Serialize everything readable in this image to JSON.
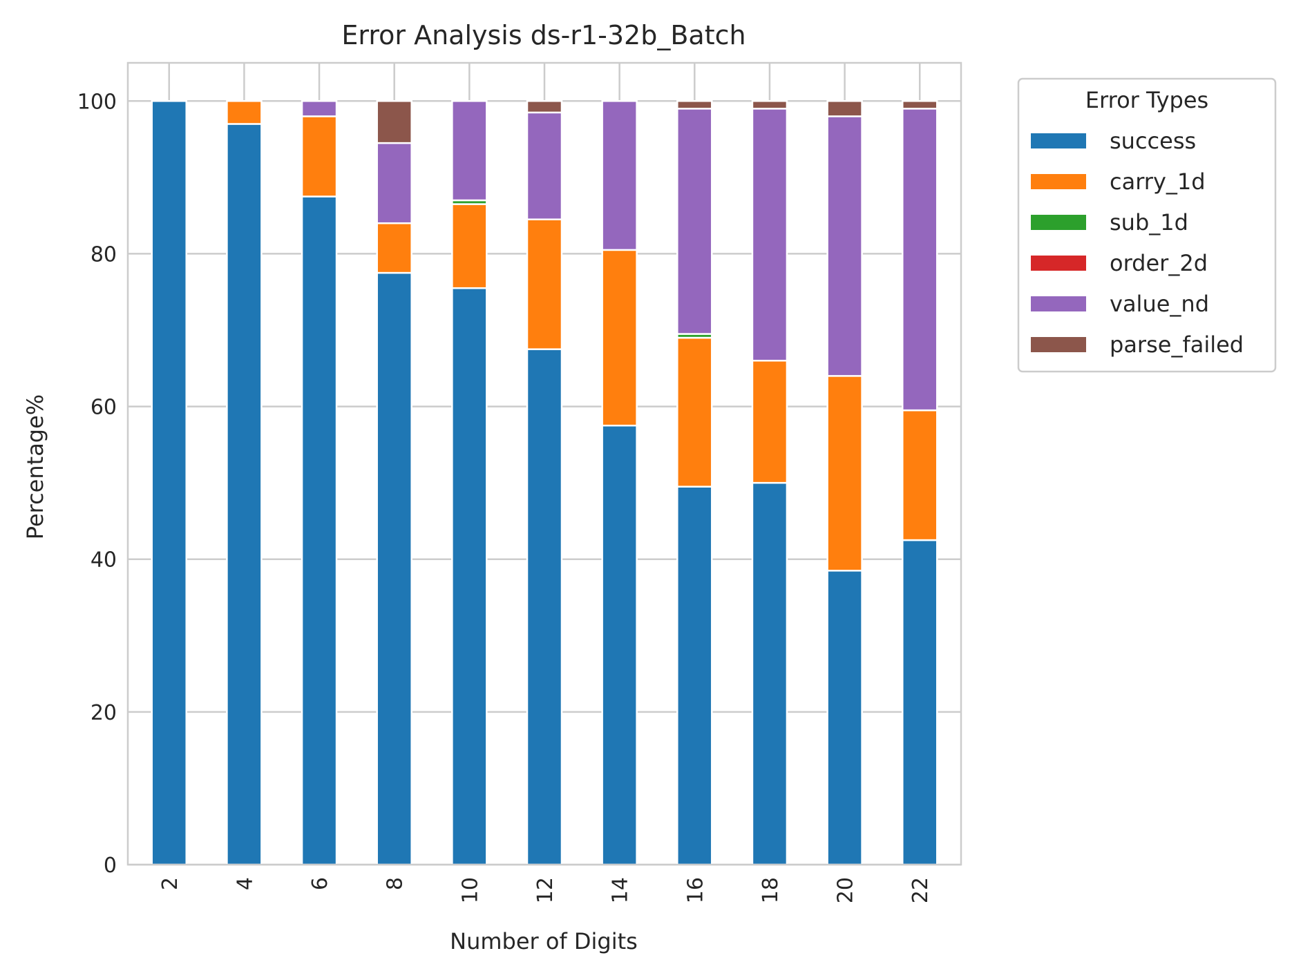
{
  "chart_data": {
    "type": "bar",
    "stacked": true,
    "title": "Error Analysis  ds-r1-32b_Batch",
    "xlabel": "Number of Digits",
    "ylabel": "Percentage%",
    "ylim": [
      0,
      105
    ],
    "yticks": [
      0,
      20,
      40,
      60,
      80,
      100
    ],
    "grid": true,
    "legend_title": "Error Types",
    "legend_position": "outside-top-right",
    "categories": [
      "2",
      "4",
      "6",
      "8",
      "10",
      "12",
      "14",
      "16",
      "18",
      "20",
      "22"
    ],
    "series": [
      {
        "name": "success",
        "color": "#1f77b4",
        "values": [
          100,
          97,
          87.5,
          77.5,
          75.5,
          67.5,
          57.5,
          49.5,
          50,
          38.5,
          42.5
        ]
      },
      {
        "name": "carry_1d",
        "color": "#ff7f0e",
        "values": [
          0,
          3,
          10.5,
          6.5,
          11,
          17,
          23,
          19.5,
          16,
          25.5,
          17
        ]
      },
      {
        "name": "sub_1d",
        "color": "#2ca02c",
        "values": [
          0,
          0,
          0,
          0,
          0.5,
          0,
          0,
          0.5,
          0,
          0,
          0
        ]
      },
      {
        "name": "order_2d",
        "color": "#d62728",
        "values": [
          0,
          0,
          0,
          0,
          0,
          0,
          0,
          0,
          0,
          0,
          0
        ]
      },
      {
        "name": "value_nd",
        "color": "#9467bd",
        "values": [
          0,
          0,
          2,
          10.5,
          13,
          14,
          19.5,
          29.5,
          33,
          34,
          39.5
        ]
      },
      {
        "name": "parse_failed",
        "color": "#8c564b",
        "values": [
          0,
          0,
          0,
          5.5,
          0,
          1.5,
          0,
          1,
          1,
          2,
          1
        ]
      }
    ]
  }
}
